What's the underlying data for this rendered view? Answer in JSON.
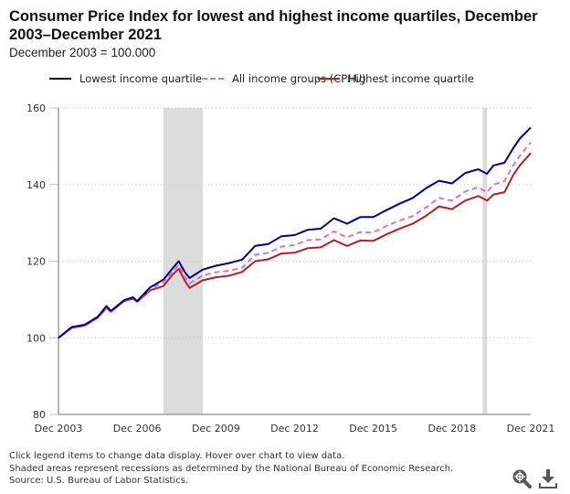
{
  "header": {
    "title": "Consumer Price Index for lowest and highest income quartiles, December 2003–December 2021",
    "subtitle": "December 2003 = 100.000"
  },
  "legend": {
    "items": [
      {
        "label": "Lowest income quartile",
        "color": "#00008B",
        "style": "solid"
      },
      {
        "label": "All income groups (CPI-U)",
        "color": "#DA70D6",
        "style": "dashed"
      },
      {
        "label": "Highest income quartile",
        "color": "#B22222",
        "style": "solid"
      }
    ]
  },
  "footer": {
    "lines": [
      "Click legend items to change data display. Hover over chart to view data.",
      "Shaded areas represent recessions as determined by the National Bureau of Economic Research.",
      "Source: U.S. Bureau of Labor Statistics."
    ]
  },
  "toolbar": {
    "zoom_icon": "zoom-in-icon",
    "download_icon": "download-icon"
  },
  "chart_data": {
    "type": "line",
    "title": "Consumer Price Index for lowest and highest income quartiles, December 2003–December 2021",
    "subtitle": "December 2003 = 100.000",
    "xlabel": "",
    "ylabel": "",
    "xlim": [
      2003.917,
      2021.917
    ],
    "ylim": [
      80,
      160
    ],
    "yticks": [
      80,
      100,
      120,
      140,
      160
    ],
    "xticks": [
      {
        "value": 2003.917,
        "label": "Dec 2003"
      },
      {
        "value": 2006.917,
        "label": "Dec 2006"
      },
      {
        "value": 2009.917,
        "label": "Dec 2009"
      },
      {
        "value": 2012.917,
        "label": "Dec 2012"
      },
      {
        "value": 2015.917,
        "label": "Dec 2015"
      },
      {
        "value": 2018.917,
        "label": "Dec 2018"
      },
      {
        "value": 2021.917,
        "label": "Dec 2021"
      }
    ],
    "grid": "horizontal-dotted",
    "legend_position": "top",
    "recessions": [
      {
        "start": 2007.917,
        "end": 2009.417
      },
      {
        "start": 2020.083,
        "end": 2020.25
      }
    ],
    "x": [
      2003.917,
      2004.417,
      2004.917,
      2005.417,
      2005.75,
      2005.917,
      2006.417,
      2006.75,
      2006.917,
      2007.417,
      2007.917,
      2008.25,
      2008.5,
      2008.75,
      2008.917,
      2009.417,
      2009.917,
      2010.417,
      2010.917,
      2011.417,
      2011.917,
      2012.417,
      2012.917,
      2013.417,
      2013.917,
      2014.417,
      2014.917,
      2015.417,
      2015.917,
      2016.417,
      2016.917,
      2017.417,
      2017.917,
      2018.417,
      2018.917,
      2019.417,
      2019.917,
      2020.25,
      2020.5,
      2020.917,
      2021.25,
      2021.5,
      2021.917
    ],
    "series": [
      {
        "name": "Lowest income quartile",
        "values": [
          100.0,
          102.8,
          103.4,
          105.5,
          108.3,
          107.0,
          109.8,
          110.6,
          109.6,
          113.2,
          115.2,
          118.0,
          120.0,
          117.0,
          115.6,
          117.8,
          118.8,
          119.5,
          120.4,
          124.0,
          124.5,
          126.5,
          126.8,
          128.2,
          128.5,
          131.2,
          129.8,
          131.5,
          131.5,
          133.3,
          135.0,
          136.5,
          139.0,
          141.0,
          140.3,
          143.0,
          144.0,
          142.8,
          145.0,
          145.7,
          149.5,
          152.0,
          154.9
        ]
      },
      {
        "name": "All income groups (CPI-U)",
        "values": [
          100.0,
          102.7,
          103.3,
          105.4,
          108.0,
          106.9,
          109.7,
          110.4,
          109.5,
          112.8,
          114.4,
          117.2,
          119.0,
          115.8,
          114.2,
          116.3,
          117.1,
          117.5,
          118.3,
          121.7,
          122.2,
          123.8,
          124.2,
          125.5,
          125.7,
          127.8,
          126.2,
          127.6,
          127.5,
          129.2,
          130.6,
          131.8,
          134.0,
          136.5,
          135.8,
          138.2,
          139.3,
          138.0,
          140.0,
          140.9,
          145.0,
          147.5,
          151.0
        ]
      },
      {
        "name": "Highest income quartile",
        "values": [
          100.0,
          102.6,
          103.2,
          105.3,
          107.8,
          106.8,
          109.6,
          110.2,
          109.4,
          112.4,
          113.5,
          116.4,
          118.0,
          114.7,
          113.0,
          115.0,
          115.8,
          116.2,
          117.2,
          120.0,
          120.5,
          122.0,
          122.2,
          123.4,
          123.6,
          125.5,
          124.0,
          125.4,
          125.3,
          127.0,
          128.5,
          129.8,
          131.8,
          134.3,
          133.6,
          135.8,
          137.0,
          135.8,
          137.4,
          138.0,
          142.5,
          145.0,
          148.2
        ]
      }
    ]
  }
}
